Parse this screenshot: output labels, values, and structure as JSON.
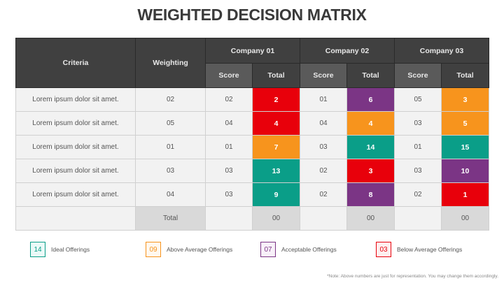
{
  "title": "WEIGHTED DECISION MATRIX",
  "headers": {
    "criteria": "Criteria",
    "weighting": "Weighting",
    "companies": [
      "Company 01",
      "Company 02",
      "Company 03"
    ],
    "score": "Score",
    "total": "Total"
  },
  "colors": {
    "red": "#e8000b",
    "orange": "#f7941d",
    "teal": "#0a9e88",
    "purple": "#7b3585"
  },
  "rows": [
    {
      "criteria": "Lorem ipsum dolor sit amet.",
      "weighting": "02",
      "c": [
        {
          "score": "02",
          "total": "2",
          "color": "red"
        },
        {
          "score": "01",
          "total": "6",
          "color": "purple"
        },
        {
          "score": "05",
          "total": "3",
          "color": "orange"
        }
      ]
    },
    {
      "criteria": "Lorem ipsum dolor sit amet.",
      "weighting": "05",
      "c": [
        {
          "score": "04",
          "total": "4",
          "color": "red"
        },
        {
          "score": "04",
          "total": "4",
          "color": "orange"
        },
        {
          "score": "03",
          "total": "5",
          "color": "orange"
        }
      ]
    },
    {
      "criteria": "Lorem ipsum dolor sit amet.",
      "weighting": "01",
      "c": [
        {
          "score": "01",
          "total": "7",
          "color": "orange"
        },
        {
          "score": "03",
          "total": "14",
          "color": "teal"
        },
        {
          "score": "01",
          "total": "15",
          "color": "teal"
        }
      ]
    },
    {
      "criteria": "Lorem ipsum dolor sit amet.",
      "weighting": "03",
      "c": [
        {
          "score": "03",
          "total": "13",
          "color": "teal"
        },
        {
          "score": "02",
          "total": "3",
          "color": "red"
        },
        {
          "score": "03",
          "total": "10",
          "color": "purple"
        }
      ]
    },
    {
      "criteria": "Lorem ipsum dolor sit amet.",
      "weighting": "04",
      "c": [
        {
          "score": "03",
          "total": "9",
          "color": "teal"
        },
        {
          "score": "02",
          "total": "8",
          "color": "purple"
        },
        {
          "score": "02",
          "total": "1",
          "color": "red"
        }
      ]
    }
  ],
  "total_row": {
    "label": "Total",
    "values": [
      "00",
      "00",
      "00"
    ]
  },
  "legend": [
    {
      "value": "14",
      "label": "Ideal Offerings",
      "color": "#0a9e88",
      "bg": "#eafaf8"
    },
    {
      "value": "09",
      "label": "Above Average Offerings",
      "color": "#f7941d",
      "bg": "#fff8ef"
    },
    {
      "value": "07",
      "label": "Acceptable Offerings",
      "color": "#7b3585",
      "bg": "#f8f0f9"
    },
    {
      "value": "03",
      "label": "Below Average Offerings",
      "color": "#e8000b",
      "bg": "#fdf0f0"
    }
  ],
  "note": "*Note: Above numbers are just for representation. You may change them accordingly."
}
